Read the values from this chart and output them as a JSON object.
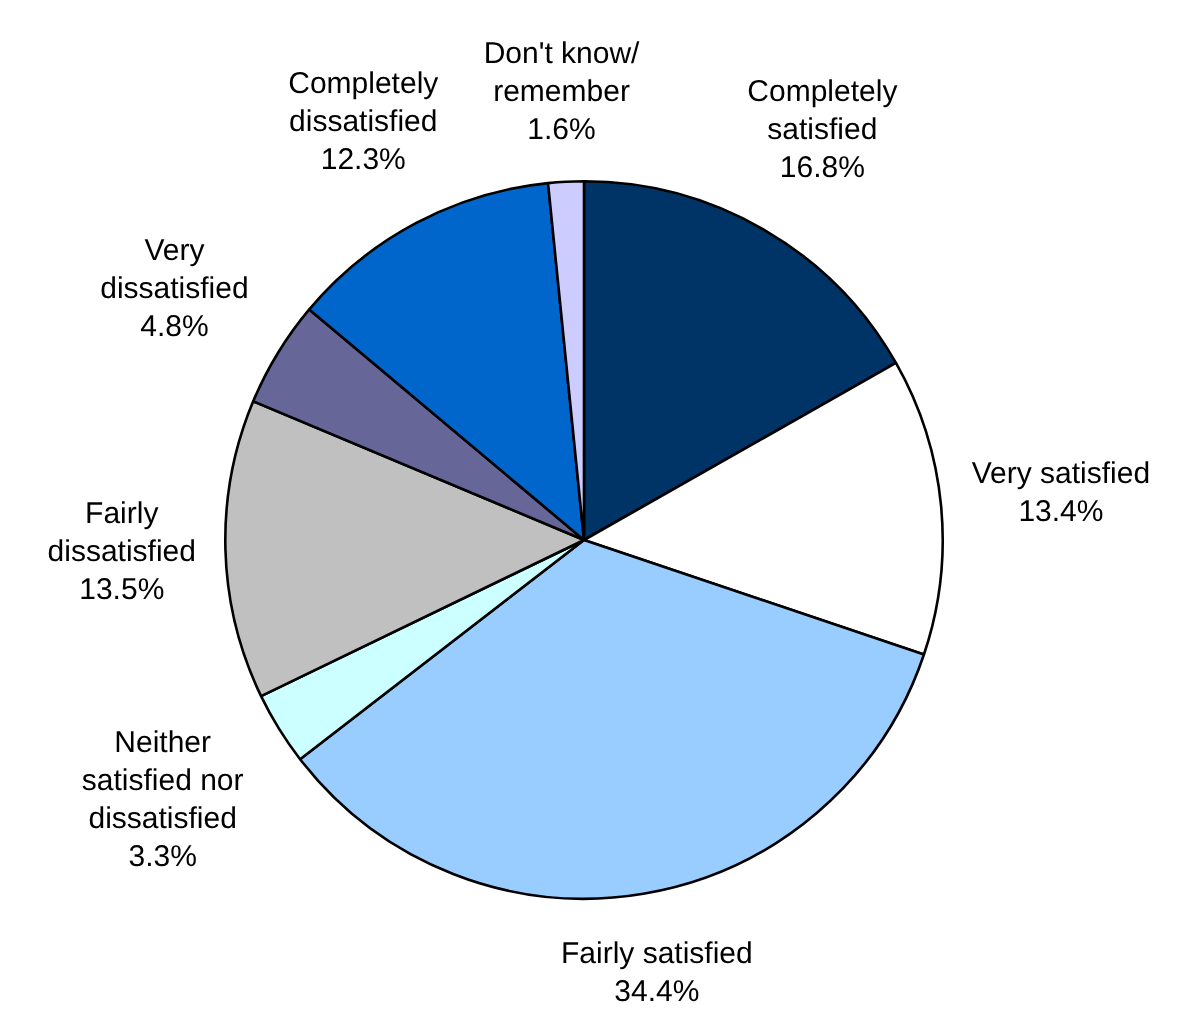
{
  "chart_data": {
    "type": "pie",
    "categories": [
      "Completely satisfied",
      "Very satisfied",
      "Fairly satisfied",
      "Neither satisfied nor dissatisfied",
      "Fairly dissatisfied",
      "Very dissatisfied",
      "Completely dissatisfied",
      "Don't know/remember"
    ],
    "values": [
      16.8,
      13.4,
      34.4,
      3.3,
      13.5,
      4.8,
      12.3,
      1.6
    ],
    "colors": [
      "#003366",
      "#ffffff",
      "#99ccff",
      "#ccffff",
      "#c0c0c0",
      "#666699",
      "#0066cc",
      "#ccccff"
    ],
    "value_labels": [
      "16.8%",
      "13.4%",
      "34.4%",
      "3.3%",
      "13.5%",
      "4.8%",
      "12.3%",
      "1.6%"
    ],
    "legend": false
  }
}
